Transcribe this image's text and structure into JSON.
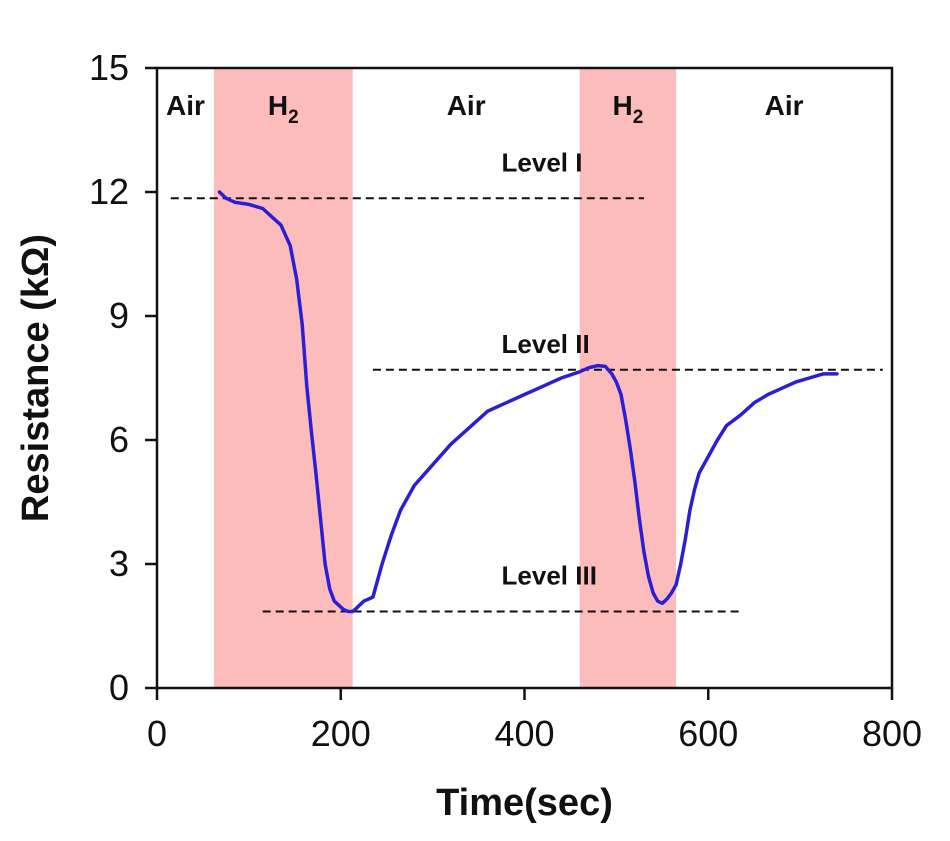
{
  "chart_data": {
    "type": "line",
    "xlabel": "Time(sec)",
    "ylabel": "Resistance (kΩ)",
    "xlim": [
      0,
      800
    ],
    "ylim": [
      0,
      15
    ],
    "xticks": [
      0,
      200,
      400,
      600,
      800
    ],
    "yticks": [
      0,
      3,
      6,
      9,
      12,
      15
    ],
    "grid": false,
    "colors": {
      "line": "#2b1fd6",
      "region": "#fdbcbc",
      "level_line": "#111111",
      "axis": "#111111"
    },
    "regions": [
      {
        "label": "Air",
        "sub": "",
        "start": 0,
        "end": 62,
        "shaded": false
      },
      {
        "label": "H",
        "sub": "2",
        "start": 62,
        "end": 213,
        "shaded": true
      },
      {
        "label": "Air",
        "sub": "",
        "start": 213,
        "end": 460,
        "shaded": false
      },
      {
        "label": "H",
        "sub": "2",
        "start": 460,
        "end": 565,
        "shaded": true
      },
      {
        "label": "Air",
        "sub": "",
        "start": 565,
        "end": 800,
        "shaded": false
      }
    ],
    "levels": [
      {
        "label": "Level I",
        "y": 11.85,
        "x_start": 15,
        "x_end": 530,
        "label_x": 375,
        "label_y": 12.5
      },
      {
        "label": "Level II",
        "y": 7.7,
        "x_start": 235,
        "x_end": 790,
        "label_x": 375,
        "label_y": 8.1
      },
      {
        "label": "Level III",
        "y": 1.85,
        "x_start": 115,
        "x_end": 635,
        "label_x": 375,
        "label_y": 2.5
      }
    ],
    "series": [
      {
        "x": [
          68,
          75,
          85,
          100,
          115,
          125,
          135,
          145,
          152,
          158,
          163,
          168,
          173,
          178,
          183,
          188,
          193,
          198,
          203,
          208,
          213,
          218,
          225,
          235,
          245,
          255,
          265,
          280,
          300,
          320,
          340,
          360,
          380,
          400,
          420,
          440,
          460,
          470,
          480,
          488,
          495,
          500,
          505,
          510,
          515,
          520,
          525,
          530,
          535,
          540,
          545,
          550,
          555,
          560,
          565,
          570,
          575,
          580,
          585,
          590,
          600,
          610,
          620,
          635,
          650,
          665,
          680,
          695,
          710,
          725,
          740
        ],
        "y": [
          12.0,
          11.85,
          11.75,
          11.7,
          11.6,
          11.4,
          11.2,
          10.7,
          9.9,
          8.8,
          7.3,
          6.2,
          5.2,
          4.1,
          3.0,
          2.4,
          2.1,
          2.0,
          1.9,
          1.85,
          1.85,
          1.95,
          2.1,
          2.2,
          3.0,
          3.7,
          4.3,
          4.9,
          5.4,
          5.9,
          6.3,
          6.7,
          6.9,
          7.1,
          7.3,
          7.5,
          7.65,
          7.75,
          7.8,
          7.78,
          7.6,
          7.4,
          7.1,
          6.5,
          5.8,
          5.0,
          4.1,
          3.3,
          2.7,
          2.3,
          2.1,
          2.05,
          2.15,
          2.3,
          2.5,
          3.0,
          3.6,
          4.3,
          4.8,
          5.2,
          5.6,
          6.0,
          6.35,
          6.6,
          6.9,
          7.1,
          7.25,
          7.4,
          7.5,
          7.6,
          7.6
        ]
      }
    ]
  }
}
